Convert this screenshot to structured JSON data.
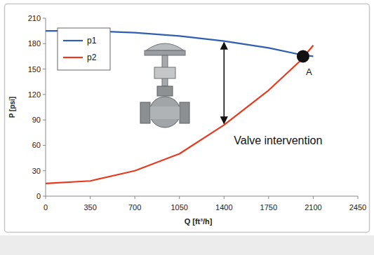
{
  "chart_data": {
    "type": "line",
    "x_label": "Q [ft³/h]",
    "y_label": "P [psi]",
    "x": [
      0,
      350,
      700,
      1050,
      1400,
      1750,
      2000,
      2100
    ],
    "series": [
      {
        "name": "p1",
        "color": "#2f5fb3",
        "values": [
          195,
          195,
          193,
          189,
          183,
          175,
          167,
          165
        ]
      },
      {
        "name": "p2",
        "color": "#e8391e",
        "values": [
          15,
          18,
          30,
          50,
          84,
          125,
          160,
          178
        ]
      }
    ],
    "xlim": [
      0,
      2450
    ],
    "xticks": [
      0,
      350,
      700,
      1050,
      1400,
      1750,
      2100,
      2450
    ],
    "ylim": [
      0,
      210
    ],
    "yticks": [
      0,
      30,
      60,
      90,
      120,
      150,
      180,
      210
    ],
    "legend": "upper-left",
    "grid": false,
    "annotations": [
      {
        "text": "A",
        "x": 2020,
        "y": 165
      },
      {
        "text": "Valve intervention",
        "x": 1400,
        "y_from": 183,
        "y_to": 84
      }
    ]
  }
}
